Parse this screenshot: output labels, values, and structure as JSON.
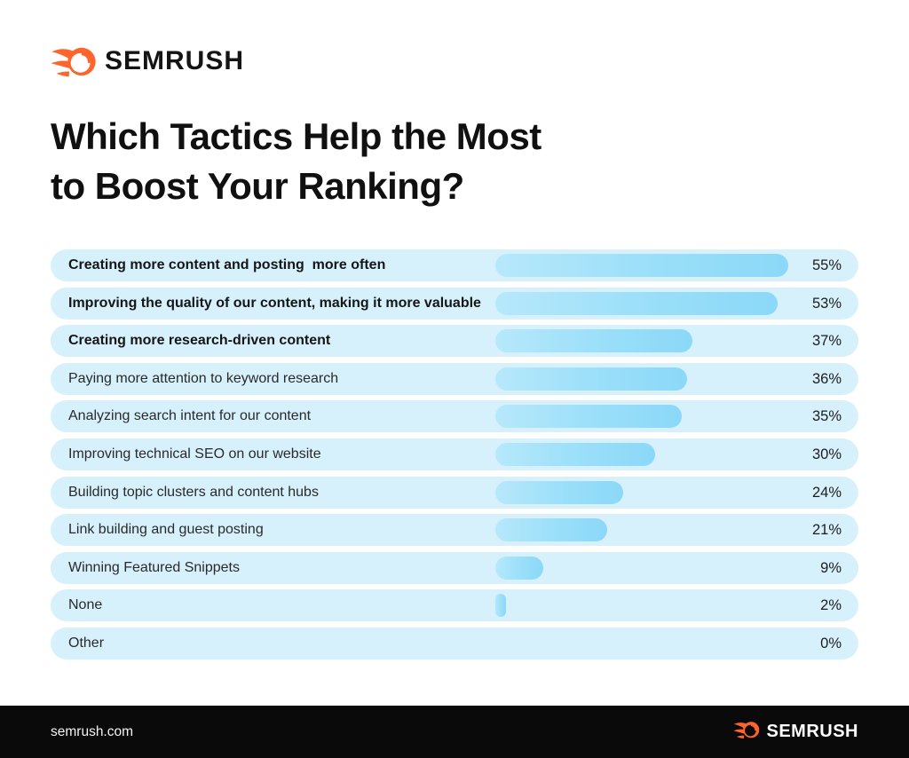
{
  "brand": {
    "name": "SEMRUSH",
    "accent_orange": "#FF642D",
    "text_dark": "#141414"
  },
  "title": {
    "line1": "Which Tactics Help the Most",
    "line2": "to Boost Your Ranking?"
  },
  "rows": [
    {
      "label": "Creating more content and posting  more often",
      "value": 55,
      "pct": "55%",
      "bold": true
    },
    {
      "label": "Improving the quality of our content, making it more valuable",
      "value": 53,
      "pct": "53%",
      "bold": true
    },
    {
      "label": "Creating more research-driven content",
      "value": 37,
      "pct": "37%",
      "bold": true
    },
    {
      "label": "Paying more attention to keyword research",
      "value": 36,
      "pct": "36%",
      "bold": false
    },
    {
      "label": "Analyzing search intent for our content",
      "value": 35,
      "pct": "35%",
      "bold": false
    },
    {
      "label": "Improving technical SEO on our website",
      "value": 30,
      "pct": "30%",
      "bold": false
    },
    {
      "label": "Building topic clusters and content hubs",
      "value": 24,
      "pct": "24%",
      "bold": false
    },
    {
      "label": "Link building and guest posting",
      "value": 21,
      "pct": "21%",
      "bold": false
    },
    {
      "label": "Winning Featured Snippets",
      "value": 9,
      "pct": "9%",
      "bold": false
    },
    {
      "label": "None",
      "value": 2,
      "pct": "2%",
      "bold": false
    },
    {
      "label": "Other",
      "value": 0,
      "pct": "0%",
      "bold": false
    }
  ],
  "chart_data": {
    "type": "bar",
    "orientation": "horizontal",
    "title": "Which Tactics Help the Most to Boost Your Ranking?",
    "unit": "%",
    "categories": [
      "Creating more content and posting  more often",
      "Improving the quality of our content, making it more valuable",
      "Creating more research-driven content",
      "Paying more attention to keyword research",
      "Analyzing search intent for our content",
      "Improving technical SEO on our website",
      "Building topic clusters and content hubs",
      "Link building and guest posting",
      "Winning Featured Snippets",
      "None",
      "Other"
    ],
    "values": [
      55,
      53,
      37,
      36,
      35,
      30,
      24,
      21,
      9,
      2,
      0
    ],
    "value_labels": [
      "55%",
      "53%",
      "37%",
      "36%",
      "35%",
      "30%",
      "24%",
      "21%",
      "9%",
      "2%",
      "0%"
    ],
    "xlim": [
      0,
      60
    ],
    "grid": false,
    "legend": false,
    "colors": {
      "row_background": "#D6F1FC",
      "bar_gradient_start": "#B7E8FB",
      "bar_gradient_end": "#8BD8F8"
    }
  },
  "footer": {
    "site": "semrush.com",
    "brand": "SEMRUSH",
    "background": "#0A0A0A"
  }
}
